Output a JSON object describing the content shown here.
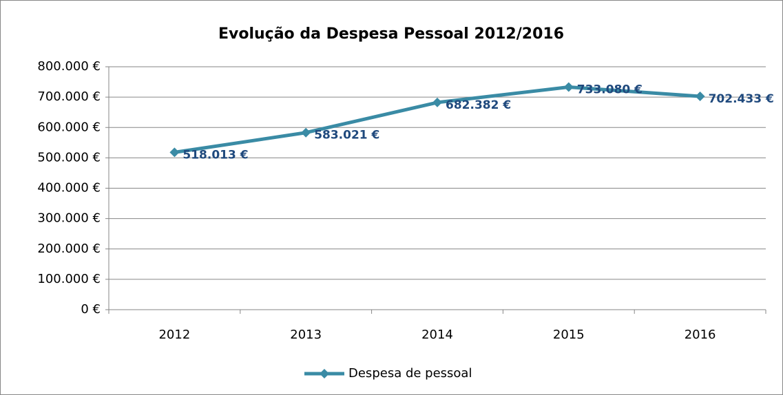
{
  "chart_data": {
    "type": "line",
    "title": "Evolução da Despesa Pessoal 2012/2016",
    "categories": [
      "2012",
      "2013",
      "2014",
      "2015",
      "2016"
    ],
    "series": [
      {
        "name": "Despesa de pessoal",
        "color": "#3a8ba5",
        "values": [
          518013,
          583021,
          682382,
          733080,
          702433
        ],
        "value_labels": [
          "518.013 €",
          "583.021 €",
          "682.382 €",
          "733.080 €",
          "702.433 €"
        ]
      }
    ],
    "ylim": [
      0,
      800000
    ],
    "yticks": [
      {
        "value": 0,
        "label": "0 €"
      },
      {
        "value": 100000,
        "label": "100.000 €"
      },
      {
        "value": 200000,
        "label": "200.000 €"
      },
      {
        "value": 300000,
        "label": "300.000 €"
      },
      {
        "value": 400000,
        "label": "400.000 €"
      },
      {
        "value": 500000,
        "label": "500.000 €"
      },
      {
        "value": 600000,
        "label": "600.000 €"
      },
      {
        "value": 700000,
        "label": "700.000 €"
      },
      {
        "value": 800000,
        "label": "800.000 €"
      }
    ],
    "grid": true,
    "legend": "bottom"
  }
}
